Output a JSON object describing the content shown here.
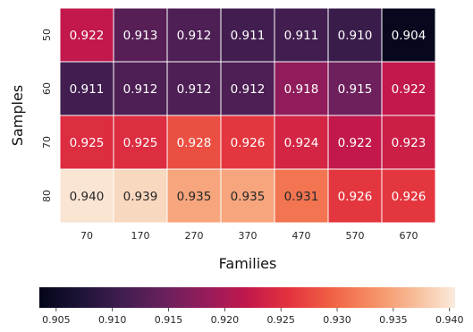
{
  "chart_data": {
    "type": "heatmap",
    "xlabel": "Families",
    "ylabel": "Samples",
    "x_categories": [
      "70",
      "170",
      "270",
      "370",
      "470",
      "570",
      "670"
    ],
    "y_categories": [
      "50",
      "60",
      "70",
      "80"
    ],
    "values": [
      [
        0.922,
        0.913,
        0.912,
        0.911,
        0.911,
        0.91,
        0.904
      ],
      [
        0.911,
        0.912,
        0.912,
        0.912,
        0.918,
        0.915,
        0.922
      ],
      [
        0.925,
        0.925,
        0.928,
        0.926,
        0.924,
        0.922,
        0.923
      ],
      [
        0.94,
        0.939,
        0.935,
        0.935,
        0.931,
        0.926,
        0.926
      ]
    ],
    "value_labels": [
      [
        "0.922",
        "0.913",
        "0.912",
        "0.911",
        "0.911",
        "0.910",
        "0.904"
      ],
      [
        "0.911",
        "0.912",
        "0.912",
        "0.912",
        "0.918",
        "0.915",
        "0.922"
      ],
      [
        "0.925",
        "0.925",
        "0.928",
        "0.926",
        "0.924",
        "0.922",
        "0.923"
      ],
      [
        "0.940",
        "0.939",
        "0.935",
        "0.935",
        "0.931",
        "0.926",
        "0.926"
      ]
    ],
    "colormap": "rocket",
    "colorbar": {
      "orientation": "horizontal",
      "placement": "bottom",
      "range": [
        0.9035,
        0.9405
      ],
      "ticks": [
        "0.905",
        "0.910",
        "0.915",
        "0.920",
        "0.925",
        "0.930",
        "0.935",
        "0.940"
      ]
    }
  }
}
